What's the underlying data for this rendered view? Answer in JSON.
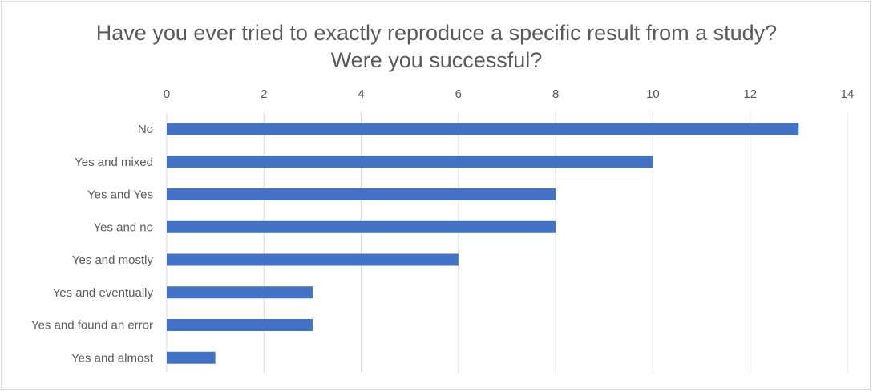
{
  "chart_data": {
    "type": "bar",
    "orientation": "horizontal",
    "title_lines": [
      "Have you ever tried to exactly reproduce a specific result from a study?",
      "Were you successful?"
    ],
    "categories": [
      "No",
      "Yes and mixed",
      "Yes and Yes",
      "Yes and no",
      "Yes and mostly",
      "Yes and eventually",
      "Yes and found an error",
      "Yes and almost"
    ],
    "values": [
      13,
      10,
      8,
      8,
      6,
      3,
      3,
      1
    ],
    "xlim": [
      0,
      14
    ],
    "xticks": [
      0,
      2,
      4,
      6,
      8,
      10,
      12,
      14
    ],
    "x_axis_position": "top",
    "grid": true,
    "legend": "none",
    "bar_color": "#4472c4",
    "grid_color": "#d9d9d9"
  }
}
